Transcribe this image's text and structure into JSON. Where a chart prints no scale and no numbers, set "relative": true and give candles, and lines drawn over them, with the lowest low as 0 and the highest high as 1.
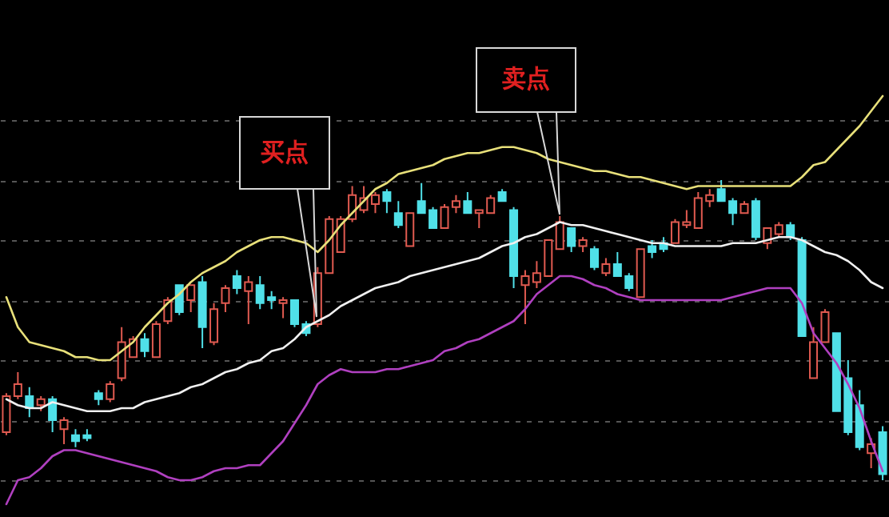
{
  "chart_data": {
    "type": "candlestick",
    "relative": true,
    "grid": true,
    "categories": [
      null,
      null,
      null,
      null,
      null,
      null,
      null,
      null,
      null,
      null,
      null,
      null,
      null,
      null,
      null,
      null,
      null,
      null,
      null,
      null,
      null,
      null,
      null,
      null,
      null,
      null,
      null,
      null,
      null,
      null,
      null,
      null,
      null,
      null,
      null,
      null,
      null,
      null,
      null,
      null,
      null,
      null,
      null,
      null,
      null,
      null,
      null,
      null,
      null,
      null,
      null,
      null,
      null,
      null,
      null,
      null,
      null,
      null,
      null,
      null,
      null,
      null,
      null,
      null,
      null,
      null,
      null,
      null,
      null,
      null,
      null,
      null,
      null,
      null,
      null,
      null,
      null
    ],
    "ohlc": [
      [
        0.16,
        0.29,
        0.15,
        0.28
      ],
      [
        0.28,
        0.36,
        0.27,
        0.32
      ],
      [
        0.28,
        0.31,
        0.21,
        0.24
      ],
      [
        0.25,
        0.28,
        0.23,
        0.27
      ],
      [
        0.27,
        0.28,
        0.16,
        0.2
      ],
      [
        0.17,
        0.21,
        0.12,
        0.2
      ],
      [
        0.15,
        0.17,
        0.11,
        0.13
      ],
      [
        0.15,
        0.17,
        0.13,
        0.14
      ],
      [
        0.29,
        0.3,
        0.25,
        0.27
      ],
      [
        0.27,
        0.33,
        0.26,
        0.32
      ],
      [
        0.34,
        0.51,
        0.33,
        0.46
      ],
      [
        0.41,
        0.48,
        0.41,
        0.47
      ],
      [
        0.47,
        0.49,
        0.41,
        0.43
      ],
      [
        0.41,
        0.53,
        0.41,
        0.52
      ],
      [
        0.53,
        0.61,
        0.52,
        0.6
      ],
      [
        0.65,
        0.65,
        0.55,
        0.56
      ],
      [
        0.6,
        0.65,
        0.56,
        0.65
      ],
      [
        0.66,
        0.68,
        0.44,
        0.51
      ],
      [
        0.46,
        0.59,
        0.45,
        0.57
      ],
      [
        0.59,
        0.65,
        0.56,
        0.64
      ],
      [
        0.68,
        0.7,
        0.62,
        0.64
      ],
      [
        0.63,
        0.68,
        0.52,
        0.66
      ],
      [
        0.65,
        0.68,
        0.57,
        0.59
      ],
      [
        0.61,
        0.63,
        0.57,
        0.6
      ],
      [
        0.59,
        0.61,
        0.54,
        0.6
      ],
      [
        0.6,
        0.6,
        0.51,
        0.52
      ],
      [
        0.52,
        0.53,
        0.48,
        0.49
      ],
      [
        0.52,
        0.71,
        0.51,
        0.69
      ],
      [
        0.69,
        0.88,
        0.69,
        0.87
      ],
      [
        0.76,
        0.88,
        0.76,
        0.87
      ],
      [
        0.87,
        0.98,
        0.86,
        0.95
      ],
      [
        0.9,
        0.98,
        0.89,
        0.94
      ],
      [
        0.92,
        0.96,
        0.89,
        0.95
      ],
      [
        0.96,
        0.97,
        0.89,
        0.93
      ],
      [
        0.89,
        0.93,
        0.84,
        0.85
      ],
      [
        0.78,
        0.89,
        0.78,
        0.89
      ],
      [
        0.93,
        0.99,
        0.89,
        0.89
      ],
      [
        0.9,
        0.91,
        0.84,
        0.84
      ],
      [
        0.84,
        0.92,
        0.84,
        0.91
      ],
      [
        0.91,
        0.95,
        0.89,
        0.93
      ],
      [
        0.93,
        0.96,
        0.89,
        0.89
      ],
      [
        0.89,
        0.9,
        0.84,
        0.9
      ],
      [
        0.89,
        0.95,
        0.89,
        0.94
      ],
      [
        0.96,
        0.97,
        0.93,
        0.93
      ],
      [
        0.9,
        0.91,
        0.64,
        0.68
      ],
      [
        0.65,
        0.7,
        0.52,
        0.68
      ],
      [
        0.66,
        0.73,
        0.64,
        0.69
      ],
      [
        0.68,
        0.8,
        0.68,
        0.8
      ],
      [
        0.77,
        0.88,
        0.77,
        0.86
      ],
      [
        0.84,
        0.84,
        0.76,
        0.78
      ],
      [
        0.78,
        0.81,
        0.76,
        0.8
      ],
      [
        0.77,
        0.78,
        0.7,
        0.71
      ],
      [
        0.69,
        0.74,
        0.68,
        0.72
      ],
      [
        0.72,
        0.76,
        0.68,
        0.68
      ],
      [
        0.68,
        0.69,
        0.63,
        0.64
      ],
      [
        0.61,
        0.77,
        0.61,
        0.77
      ],
      [
        0.78,
        0.8,
        0.74,
        0.76
      ],
      [
        0.79,
        0.81,
        0.76,
        0.77
      ],
      [
        0.79,
        0.87,
        0.79,
        0.86
      ],
      [
        0.85,
        0.9,
        0.84,
        0.86
      ],
      [
        0.84,
        0.96,
        0.84,
        0.94
      ],
      [
        0.93,
        0.97,
        0.91,
        0.95
      ],
      [
        0.97,
        1,
        0.93,
        0.93
      ],
      [
        0.93,
        0.94,
        0.85,
        0.89
      ],
      [
        0.89,
        0.93,
        0.89,
        0.92
      ],
      [
        0.93,
        0.94,
        0.8,
        0.81
      ],
      [
        0.79,
        0.84,
        0.77,
        0.84
      ],
      [
        0.82,
        0.86,
        0.81,
        0.85
      ],
      [
        0.85,
        0.86,
        0.8,
        0.81
      ],
      [
        0.8,
        0.81,
        0.48,
        0.48
      ],
      [
        0.34,
        0.51,
        0.34,
        0.46
      ],
      [
        0.46,
        0.57,
        0.46,
        0.56
      ],
      [
        0.49,
        0.49,
        0.23,
        0.23
      ],
      [
        0.34,
        0.4,
        0.15,
        0.16
      ],
      [
        0.25,
        0.3,
        0.1,
        0.11
      ],
      [
        0.09,
        0.14,
        0.04,
        0.12
      ],
      [
        0.16,
        0.18,
        0,
        0.02
      ]
    ],
    "colors": [
      "#e05a50",
      "#e05a50",
      "#50e0e8",
      "#e05a50",
      "#50e0e8",
      "#e05a50",
      "#50e0e8",
      "#50e0e8",
      "#50e0e8",
      "#e05a50",
      "#e05a50",
      "#e05a50",
      "#50e0e8",
      "#e05a50",
      "#e05a50",
      "#50e0e8",
      "#e05a50",
      "#50e0e8",
      "#e05a50",
      "#e05a50",
      "#50e0e8",
      "#e05a50",
      "#50e0e8",
      "#50e0e8",
      "#e05a50",
      "#50e0e8",
      "#50e0e8",
      "#e05a50",
      "#e05a50",
      "#e05a50",
      "#e05a50",
      "#e05a50",
      "#e05a50",
      "#50e0e8",
      "#50e0e8",
      "#e05a50",
      "#50e0e8",
      "#50e0e8",
      "#e05a50",
      "#e05a50",
      "#50e0e8",
      "#e05a50",
      "#e05a50",
      "#50e0e8",
      "#50e0e8",
      "#e05a50",
      "#e05a50",
      "#e05a50",
      "#e05a50",
      "#50e0e8",
      "#e05a50",
      "#50e0e8",
      "#e05a50",
      "#50e0e8",
      "#50e0e8",
      "#e05a50",
      "#50e0e8",
      "#50e0e8",
      "#e05a50",
      "#e05a50",
      "#e05a50",
      "#e05a50",
      "#50e0e8",
      "#50e0e8",
      "#e05a50",
      "#50e0e8",
      "#e05a50",
      "#e05a50",
      "#50e0e8",
      "#50e0e8",
      "#e05a50",
      "#e05a50",
      "#50e0e8",
      "#50e0e8",
      "#50e0e8",
      "#e05a50",
      "#50e0e8"
    ],
    "series": [
      {
        "type": "line",
        "color": "#e8e07a",
        "values": [
          0.61,
          0.51,
          0.46,
          0.45,
          0.44,
          0.43,
          0.41,
          0.41,
          0.4,
          0.4,
          0.43,
          0.46,
          0.51,
          0.55,
          0.59,
          0.62,
          0.66,
          0.69,
          0.71,
          0.73,
          0.76,
          0.78,
          0.8,
          0.81,
          0.81,
          0.8,
          0.79,
          0.76,
          0.8,
          0.85,
          0.89,
          0.93,
          0.97,
          0.99,
          1.02,
          1.03,
          1.04,
          1.05,
          1.07,
          1.08,
          1.09,
          1.09,
          1.1,
          1.11,
          1.11,
          1.1,
          1.09,
          1.07,
          1.06,
          1.05,
          1.04,
          1.03,
          1.03,
          1.02,
          1.01,
          1.01,
          1.0,
          0.99,
          0.98,
          0.97,
          0.98,
          0.98,
          0.98,
          0.98,
          0.98,
          0.98,
          0.98,
          0.98,
          0.98,
          1.01,
          1.05,
          1.06,
          1.1,
          1.14,
          1.18,
          1.23,
          1.28
        ]
      },
      {
        "type": "line",
        "color": "#f0f0f0",
        "values": [
          0.27,
          0.25,
          0.24,
          0.24,
          0.26,
          0.25,
          0.24,
          0.23,
          0.23,
          0.23,
          0.24,
          0.24,
          0.26,
          0.27,
          0.28,
          0.29,
          0.31,
          0.32,
          0.34,
          0.36,
          0.37,
          0.39,
          0.4,
          0.43,
          0.44,
          0.47,
          0.51,
          0.53,
          0.55,
          0.58,
          0.6,
          0.62,
          0.64,
          0.65,
          0.66,
          0.68,
          0.69,
          0.7,
          0.71,
          0.72,
          0.73,
          0.74,
          0.76,
          0.78,
          0.79,
          0.81,
          0.82,
          0.84,
          0.86,
          0.85,
          0.85,
          0.84,
          0.83,
          0.82,
          0.81,
          0.8,
          0.79,
          0.79,
          0.78,
          0.78,
          0.78,
          0.78,
          0.78,
          0.79,
          0.79,
          0.79,
          0.8,
          0.81,
          0.81,
          0.8,
          0.78,
          0.76,
          0.75,
          0.73,
          0.7,
          0.66,
          0.64
        ]
      },
      {
        "type": "line",
        "color": "#b040c0",
        "values": [
          -0.08,
          0,
          0.01,
          0.04,
          0.08,
          0.1,
          0.1,
          0.09,
          0.08,
          0.07,
          0.06,
          0.05,
          0.04,
          0.03,
          0.01,
          0,
          0,
          0.01,
          0.03,
          0.04,
          0.04,
          0.05,
          0.05,
          0.09,
          0.13,
          0.19,
          0.25,
          0.32,
          0.35,
          0.37,
          0.36,
          0.36,
          0.36,
          0.37,
          0.37,
          0.38,
          0.39,
          0.4,
          0.43,
          0.44,
          0.46,
          0.47,
          0.49,
          0.51,
          0.53,
          0.57,
          0.62,
          0.65,
          0.68,
          0.68,
          0.67,
          0.65,
          0.64,
          0.62,
          0.61,
          0.6,
          0.6,
          0.6,
          0.6,
          0.6,
          0.6,
          0.6,
          0.6,
          0.61,
          0.62,
          0.63,
          0.64,
          0.64,
          0.64,
          0.59,
          0.49,
          0.44,
          0.39,
          0.32,
          0.24,
          0.13,
          0.03
        ]
      }
    ],
    "annotations": [
      "买点",
      "卖点"
    ]
  }
}
